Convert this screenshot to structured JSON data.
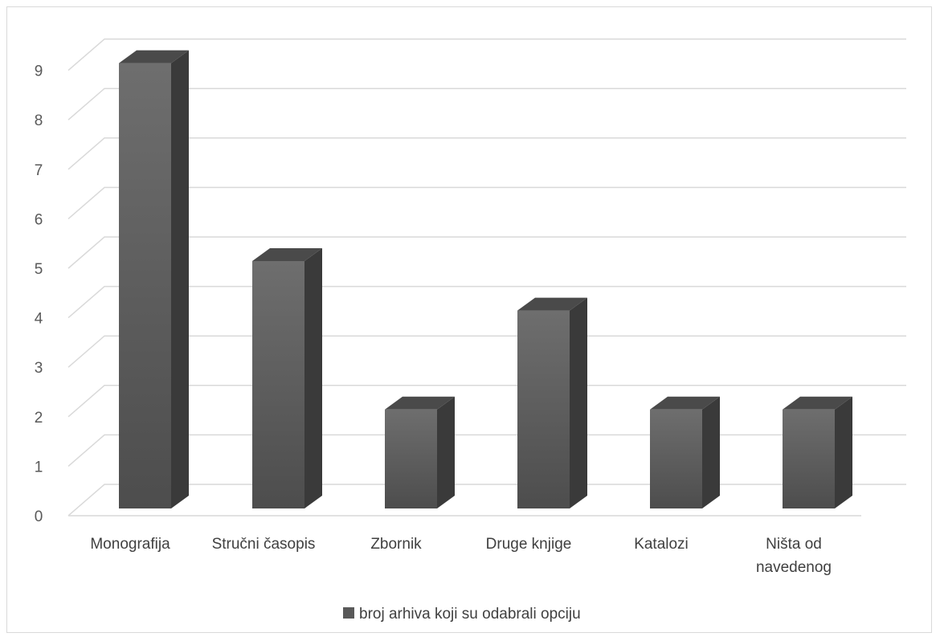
{
  "chart_data": {
    "type": "bar",
    "style": "3d-column",
    "categories": [
      "Monografija",
      "Stručni časopis",
      "Zbornik",
      "Druge knjige",
      "Katalozi",
      "Ništa od navedenog"
    ],
    "category_label_lines": [
      [
        "Monografija"
      ],
      [
        "Stručni časopis"
      ],
      [
        "Zbornik"
      ],
      [
        "Druge knjige"
      ],
      [
        "Katalozi"
      ],
      [
        "Ništa od",
        "navedenog"
      ]
    ],
    "series": [
      {
        "name": "broj arhiva koji su odabrali opciju",
        "values": [
          9,
          5,
          2,
          4,
          2,
          2
        ],
        "color": "#595959"
      }
    ],
    "ylim": [
      0,
      9
    ],
    "yticks": [
      "0",
      "1",
      "2",
      "3",
      "4",
      "5",
      "6",
      "7",
      "8",
      "9"
    ],
    "grid": true,
    "legend": "bottom",
    "title": "",
    "xlabel": "",
    "ylabel": ""
  }
}
